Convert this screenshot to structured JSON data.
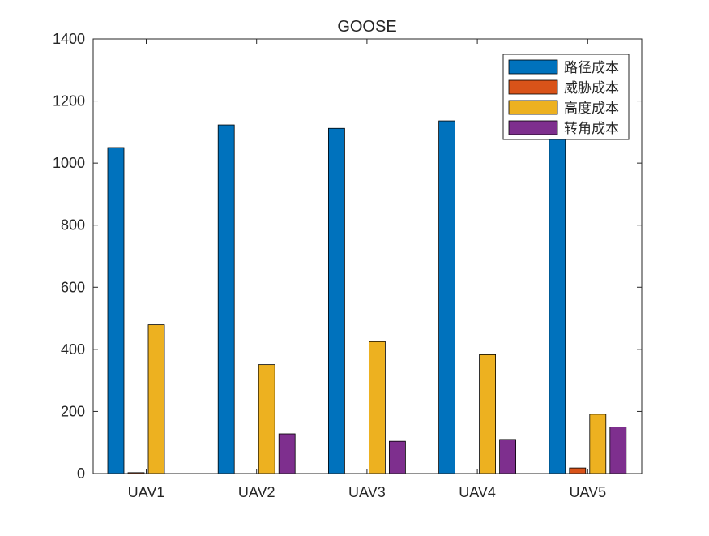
{
  "chart_data": {
    "type": "bar",
    "title": "GOOSE",
    "xlabel": "",
    "ylabel": "",
    "categories": [
      "UAV1",
      "UAV2",
      "UAV3",
      "UAV4",
      "UAV5"
    ],
    "ylim": [
      0,
      1400
    ],
    "yticks": [
      0,
      200,
      400,
      600,
      800,
      1000,
      1200,
      1400
    ],
    "grid": false,
    "legend_position": "top-right",
    "series": [
      {
        "name": "路径成本",
        "color": "#0072BD",
        "values": [
          1050,
          1123,
          1112,
          1136,
          1120
        ]
      },
      {
        "name": "威胁成本",
        "color": "#D95319",
        "values": [
          3,
          0,
          0,
          0,
          18
        ]
      },
      {
        "name": "高度成本",
        "color": "#EDB120",
        "values": [
          479,
          351,
          425,
          383,
          191
        ]
      },
      {
        "name": "转角成本",
        "color": "#7E2F8E",
        "values": [
          0,
          128,
          104,
          110,
          150
        ]
      }
    ]
  }
}
